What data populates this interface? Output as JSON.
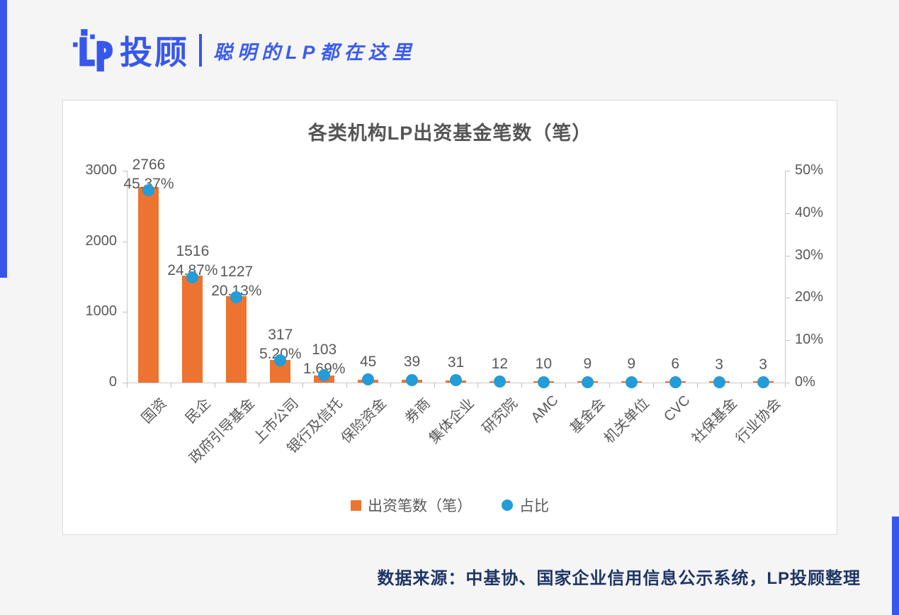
{
  "brand": {
    "name": "投顾",
    "tagline": "聪明的LP都在这里",
    "accent_color": "#3757ec"
  },
  "chart_data": {
    "type": "bar",
    "title": "各类机构LP出资基金笔数（笔）",
    "categories": [
      "国资",
      "民企",
      "政府引导基金",
      "上市公司",
      "银行及信托",
      "保险资金",
      "券商",
      "集体企业",
      "研究院",
      "AMC",
      "基金会",
      "机关单位",
      "CVC",
      "社保基金",
      "行业协会"
    ],
    "series": [
      {
        "name": "出资笔数（笔）",
        "chart_type": "bar",
        "axis": "left",
        "color": "#ec7430",
        "values": [
          2766,
          1516,
          1227,
          317,
          103,
          45,
          39,
          31,
          12,
          10,
          9,
          9,
          6,
          3,
          3
        ]
      },
      {
        "name": "占比",
        "chart_type": "scatter",
        "axis": "right",
        "color": "#239cd7",
        "values_pct": [
          45.37,
          24.87,
          20.13,
          5.2,
          1.69,
          0.74,
          0.64,
          0.51,
          0.2,
          0.16,
          0.15,
          0.15,
          0.1,
          0.05,
          0.05
        ],
        "point_labels": [
          "45.37%",
          "24.87%",
          "20.13%",
          "5.20%",
          "1.69%",
          "",
          "",
          "",
          "",
          "",
          "",
          "",
          "",
          "",
          ""
        ]
      }
    ],
    "left_axis": {
      "ticks": [
        "0",
        "1000",
        "2000",
        "3000"
      ],
      "min": 0,
      "max": 3000
    },
    "right_axis": {
      "ticks": [
        "0%",
        "10%",
        "20%",
        "30%",
        "40%",
        "50%"
      ],
      "min": 0,
      "max": 50
    },
    "legend": [
      "出资笔数（笔）",
      "占比"
    ],
    "legend_position": "bottom",
    "grid": false
  },
  "footer": {
    "source": "数据来源：中基协、国家企业信用信息公示系统，LP投顾整理"
  }
}
